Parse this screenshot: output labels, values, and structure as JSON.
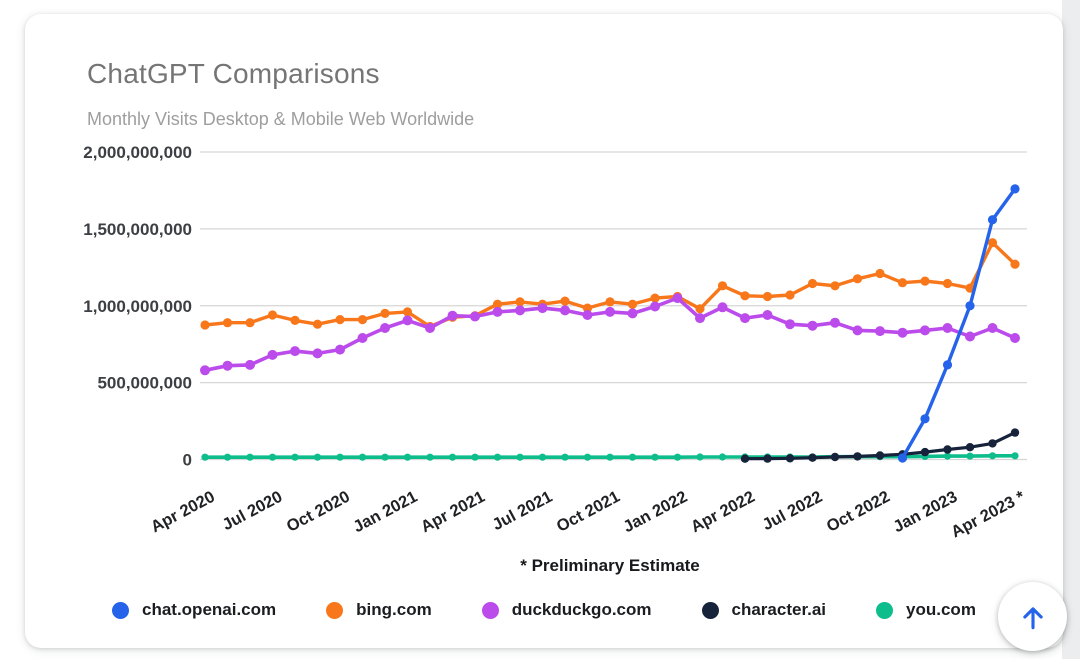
{
  "card": {
    "title": "ChatGPT Comparisons",
    "subtitle": "Monthly Visits Desktop & Mobile Web Worldwide",
    "footnote": "* Preliminary Estimate"
  },
  "scroll_top_button": {
    "icon": "up-arrow-icon",
    "color": "#2563eb"
  },
  "chart_data": {
    "type": "line",
    "title": "ChatGPT Comparisons",
    "subtitle": "Monthly Visits Desktop & Mobile Web Worldwide",
    "unit": "monthly visits, values in millions (axis shows raw counts)",
    "grid": true,
    "legend_position": "bottom",
    "annotation": "* Preliminary Estimate",
    "y_axis": {
      "min": 0,
      "max": 2000,
      "tick_values": [
        0,
        500,
        1000,
        1500,
        2000
      ],
      "tick_labels": [
        "0",
        "500,000,000",
        "1,000,000,000",
        "1,500,000,000",
        "2,000,000,000"
      ]
    },
    "x_tick_labels": [
      "Apr 2020",
      "Jul 2020",
      "Oct 2020",
      "Jan 2021",
      "Apr 2021",
      "Jul 2021",
      "Oct 2021",
      "Jan 2022",
      "Apr 2022",
      "Jul 2022",
      "Oct 2022",
      "Jan 2023",
      "Apr 2023 *"
    ],
    "categories": [
      "Apr 2020",
      "May 2020",
      "Jun 2020",
      "Jul 2020",
      "Aug 2020",
      "Sep 2020",
      "Oct 2020",
      "Nov 2020",
      "Dec 2020",
      "Jan 2021",
      "Feb 2021",
      "Mar 2021",
      "Apr 2021",
      "May 2021",
      "Jun 2021",
      "Jul 2021",
      "Aug 2021",
      "Sep 2021",
      "Oct 2021",
      "Nov 2021",
      "Dec 2021",
      "Jan 2022",
      "Feb 2022",
      "Mar 2022",
      "Apr 2022",
      "May 2022",
      "Jun 2022",
      "Jul 2022",
      "Aug 2022",
      "Sep 2022",
      "Oct 2022",
      "Nov 2022",
      "Dec 2022",
      "Jan 2023",
      "Feb 2023",
      "Mar 2023",
      "Apr 2023"
    ],
    "series": [
      {
        "name": "chat.openai.com",
        "color": "#2563eb",
        "dot_radius": 4.6,
        "line_width": 3.4,
        "values": [
          null,
          null,
          null,
          null,
          null,
          null,
          null,
          null,
          null,
          null,
          null,
          null,
          null,
          null,
          null,
          null,
          null,
          null,
          null,
          null,
          null,
          null,
          null,
          null,
          null,
          null,
          null,
          null,
          null,
          null,
          null,
          10,
          265,
          615,
          1000,
          1560,
          1760
        ]
      },
      {
        "name": "bing.com",
        "color": "#f8771b",
        "dot_radius": 4.6,
        "line_width": 3.4,
        "values": [
          875,
          890,
          890,
          940,
          905,
          880,
          910,
          910,
          950,
          960,
          865,
          925,
          935,
          1010,
          1025,
          1010,
          1030,
          985,
          1025,
          1010,
          1050,
          1060,
          980,
          1130,
          1065,
          1060,
          1070,
          1145,
          1130,
          1175,
          1210,
          1150,
          1160,
          1145,
          1115,
          1410,
          1270
        ]
      },
      {
        "name": "duckduckgo.com",
        "color": "#bb4beb",
        "dot_radius": 5.0,
        "line_width": 3.6,
        "values": [
          580,
          610,
          615,
          680,
          705,
          690,
          715,
          790,
          855,
          905,
          855,
          935,
          930,
          960,
          970,
          985,
          970,
          940,
          960,
          950,
          995,
          1050,
          920,
          990,
          920,
          940,
          880,
          870,
          890,
          840,
          835,
          825,
          840,
          855,
          800,
          855,
          790
        ]
      },
      {
        "name": "character.ai",
        "color": "#16233b",
        "dot_radius": 4.2,
        "line_width": 3.2,
        "values": [
          null,
          null,
          null,
          null,
          null,
          null,
          null,
          null,
          null,
          null,
          null,
          null,
          null,
          null,
          null,
          null,
          null,
          null,
          null,
          null,
          null,
          null,
          null,
          null,
          5,
          6,
          8,
          12,
          16,
          20,
          26,
          34,
          48,
          65,
          80,
          105,
          175
        ]
      },
      {
        "name": "you.com",
        "color": "#0ebd8c",
        "dot_radius": 3.6,
        "line_width": 3.6,
        "values": [
          15,
          15,
          15,
          15,
          15,
          15,
          15,
          15,
          15,
          15,
          15,
          15,
          15,
          15,
          15,
          15,
          15,
          15,
          15,
          15,
          15,
          15,
          16,
          16,
          16,
          16,
          16,
          16,
          18,
          18,
          18,
          18,
          20,
          22,
          22,
          24,
          24
        ]
      }
    ]
  }
}
